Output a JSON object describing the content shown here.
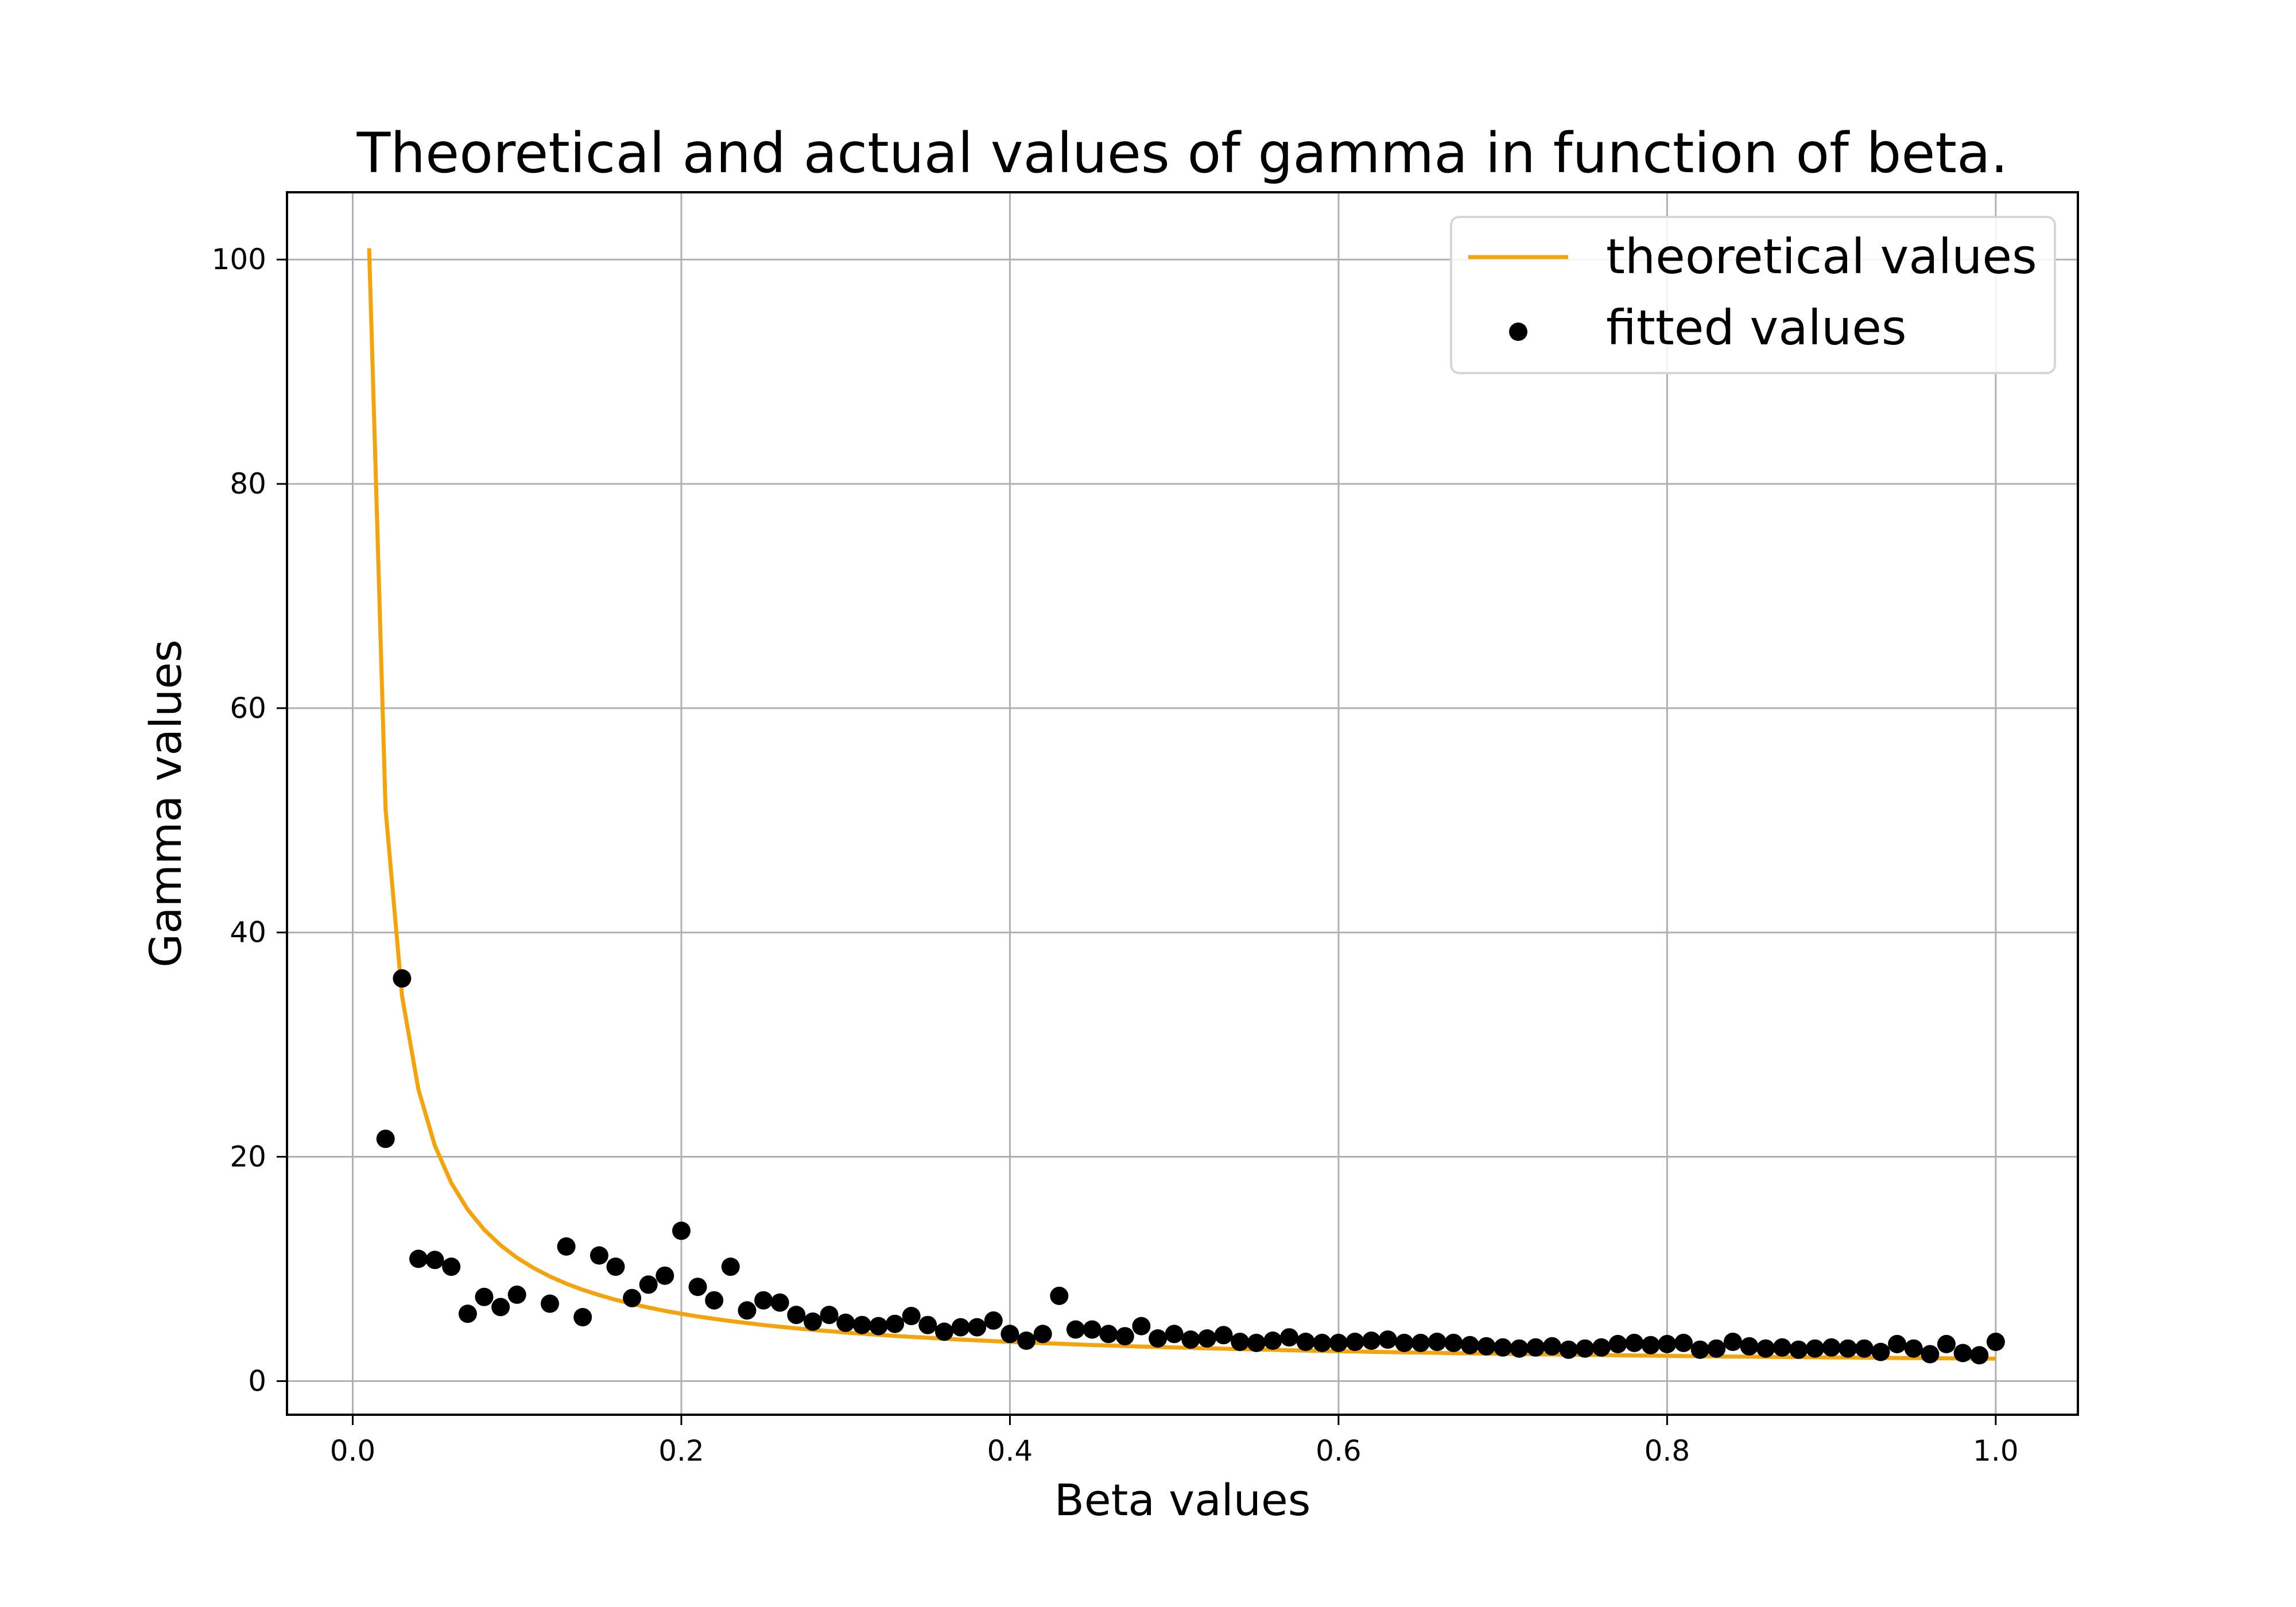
{
  "chart_data": {
    "type": "scatter",
    "title": "Theoretical and actual values of gamma in function of beta.",
    "xlabel": "Beta values",
    "ylabel": "Gamma values",
    "xlim": [
      -0.04,
      1.05
    ],
    "ylim": [
      -3,
      106
    ],
    "xticks": [
      0.0,
      0.2,
      0.4,
      0.6,
      0.8,
      1.0
    ],
    "xtick_labels": [
      "0.0",
      "0.2",
      "0.4",
      "0.6",
      "0.8",
      "1.0"
    ],
    "yticks": [
      0,
      20,
      40,
      60,
      80,
      100
    ],
    "ytick_labels": [
      "0",
      "20",
      "40",
      "60",
      "80",
      "100"
    ],
    "grid": true,
    "legend_position": "top-right",
    "colors": {
      "theoretical": "#f5a30a",
      "fitted": "#000000",
      "grid": "#b0b0b0"
    },
    "series": [
      {
        "name": "theoretical values",
        "kind": "line",
        "formula": "1 + 1/beta",
        "x": [
          0.01,
          0.02,
          0.03,
          0.04,
          0.05,
          0.06,
          0.07,
          0.08,
          0.09,
          0.1,
          0.11,
          0.12,
          0.13,
          0.14,
          0.15,
          0.16,
          0.17,
          0.18,
          0.19,
          0.2,
          0.21,
          0.22,
          0.23,
          0.24,
          0.25,
          0.26,
          0.27,
          0.28,
          0.29,
          0.3,
          0.31,
          0.32,
          0.33,
          0.34,
          0.35,
          0.36,
          0.37,
          0.38,
          0.39,
          0.4,
          0.41,
          0.42,
          0.43,
          0.44,
          0.45,
          0.46,
          0.47,
          0.48,
          0.49,
          0.5,
          0.51,
          0.52,
          0.53,
          0.54,
          0.55,
          0.56,
          0.57,
          0.58,
          0.59,
          0.6,
          0.61,
          0.62,
          0.63,
          0.64,
          0.65,
          0.66,
          0.67,
          0.68,
          0.69,
          0.7,
          0.71,
          0.72,
          0.73,
          0.74,
          0.75,
          0.76,
          0.77,
          0.78,
          0.79,
          0.8,
          0.81,
          0.82,
          0.83,
          0.84,
          0.85,
          0.86,
          0.87,
          0.88,
          0.89,
          0.9,
          0.91,
          0.92,
          0.93,
          0.94,
          0.95,
          0.96,
          0.97,
          0.98,
          0.99,
          1.0
        ],
        "y": [
          101.0,
          51.0,
          34.33,
          26.0,
          21.0,
          17.67,
          15.29,
          13.5,
          12.11,
          11.0,
          10.09,
          9.33,
          8.69,
          8.14,
          7.67,
          7.25,
          6.88,
          6.56,
          6.26,
          6.0,
          5.76,
          5.55,
          5.35,
          5.17,
          5.0,
          4.85,
          4.7,
          4.57,
          4.45,
          4.33,
          4.23,
          4.13,
          4.03,
          3.94,
          3.86,
          3.78,
          3.7,
          3.63,
          3.56,
          3.5,
          3.44,
          3.38,
          3.33,
          3.27,
          3.22,
          3.17,
          3.13,
          3.08,
          3.04,
          3.0,
          2.96,
          2.92,
          2.89,
          2.85,
          2.82,
          2.79,
          2.75,
          2.72,
          2.69,
          2.67,
          2.64,
          2.61,
          2.59,
          2.56,
          2.54,
          2.52,
          2.49,
          2.47,
          2.45,
          2.43,
          2.41,
          2.39,
          2.37,
          2.35,
          2.33,
          2.32,
          2.3,
          2.28,
          2.27,
          2.25,
          2.23,
          2.22,
          2.2,
          2.19,
          2.18,
          2.16,
          2.15,
          2.14,
          2.12,
          2.11,
          2.1,
          2.09,
          2.08,
          2.06,
          2.05,
          2.04,
          2.03,
          2.02,
          2.01,
          2.0
        ]
      },
      {
        "name": "fitted values",
        "kind": "scatter",
        "x": [
          0.02,
          0.03,
          0.04,
          0.05,
          0.06,
          0.07,
          0.08,
          0.09,
          0.1,
          0.12,
          0.13,
          0.14,
          0.15,
          0.16,
          0.17,
          0.18,
          0.19,
          0.2,
          0.21,
          0.22,
          0.23,
          0.24,
          0.25,
          0.26,
          0.27,
          0.28,
          0.29,
          0.3,
          0.31,
          0.32,
          0.33,
          0.34,
          0.35,
          0.36,
          0.37,
          0.38,
          0.39,
          0.4,
          0.41,
          0.42,
          0.43,
          0.44,
          0.45,
          0.46,
          0.47,
          0.48,
          0.49,
          0.5,
          0.51,
          0.52,
          0.53,
          0.54,
          0.55,
          0.56,
          0.57,
          0.58,
          0.59,
          0.6,
          0.61,
          0.62,
          0.63,
          0.64,
          0.65,
          0.66,
          0.67,
          0.68,
          0.69,
          0.7,
          0.71,
          0.72,
          0.73,
          0.74,
          0.75,
          0.76,
          0.77,
          0.78,
          0.79,
          0.8,
          0.81,
          0.82,
          0.83,
          0.84,
          0.85,
          0.86,
          0.87,
          0.88,
          0.89,
          0.9,
          0.91,
          0.92,
          0.93,
          0.94,
          0.95,
          0.96,
          0.97,
          0.98,
          0.99,
          1.0
        ],
        "y": [
          21.6,
          35.9,
          10.9,
          10.8,
          10.2,
          6.0,
          7.5,
          6.6,
          7.7,
          6.9,
          12.0,
          5.7,
          11.2,
          10.2,
          7.4,
          8.6,
          9.4,
          13.4,
          8.4,
          7.2,
          10.2,
          6.3,
          7.2,
          7.0,
          5.9,
          5.3,
          5.9,
          5.2,
          5.0,
          4.9,
          5.1,
          5.8,
          5.0,
          4.4,
          4.8,
          4.8,
          5.4,
          4.2,
          3.6,
          4.2,
          7.6,
          4.6,
          4.6,
          4.2,
          4.0,
          4.9,
          3.8,
          4.2,
          3.7,
          3.8,
          4.1,
          3.5,
          3.4,
          3.6,
          3.9,
          3.5,
          3.4,
          3.4,
          3.5,
          3.6,
          3.7,
          3.4,
          3.4,
          3.5,
          3.4,
          3.2,
          3.1,
          3.0,
          2.9,
          3.0,
          3.1,
          2.8,
          2.9,
          3.0,
          3.3,
          3.4,
          3.2,
          3.3,
          3.4,
          2.8,
          2.9,
          3.5,
          3.1,
          2.9,
          3.0,
          2.8,
          2.9,
          3.0,
          2.9,
          2.9,
          2.6,
          3.3,
          2.9,
          2.4,
          3.3,
          2.5,
          2.3,
          3.5
        ]
      }
    ]
  }
}
